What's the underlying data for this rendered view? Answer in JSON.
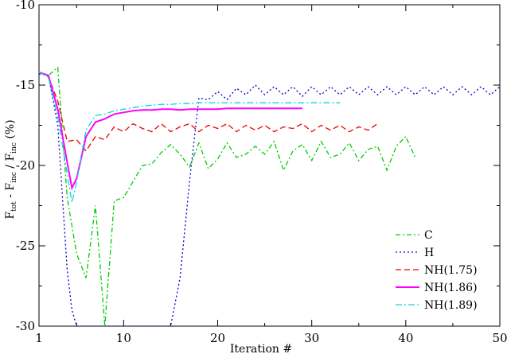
{
  "chart_data": {
    "type": "line",
    "title": "",
    "xlabel": "Iteration #",
    "ylabel": {
      "main": "F",
      "sub1": "tot",
      "mid": " - F",
      "sub2": "inc",
      "mid2": " / F",
      "sub3": "inc",
      "tail": " (%)"
    },
    "xlim": [
      1,
      50
    ],
    "ylim": [
      -30,
      -10
    ],
    "xticks": [
      1,
      10,
      20,
      30,
      40,
      50
    ],
    "yticks": [
      -30,
      -25,
      -20,
      -15,
      -10
    ],
    "grid": false,
    "legend_position": "bottom-right",
    "series": [
      {
        "name": "C",
        "color": "#00cc00",
        "dash": "6,3,2,3",
        "x": [
          1,
          2,
          3,
          4,
          5,
          6,
          7,
          8,
          9,
          10,
          11,
          12,
          13,
          14,
          15,
          16,
          17,
          18,
          19,
          20,
          21,
          22,
          23,
          24,
          25,
          26,
          27,
          28,
          29,
          30,
          31,
          32,
          33,
          34,
          35,
          36,
          37,
          38,
          39,
          40,
          41
        ],
        "y": [
          -14.2,
          -14.4,
          -13.9,
          -22.0,
          -25.5,
          -27.0,
          -22.5,
          -30.0,
          -22.2,
          -22.0,
          -21.0,
          -20.0,
          -19.9,
          -19.2,
          -18.7,
          -19.3,
          -20.1,
          -18.6,
          -20.2,
          -19.6,
          -18.6,
          -19.5,
          -19.3,
          -18.8,
          -19.3,
          -18.5,
          -20.3,
          -19.1,
          -18.7,
          -19.7,
          -18.5,
          -19.5,
          -19.3,
          -18.6,
          -19.7,
          -19.0,
          -18.8,
          -20.3,
          -18.8,
          -18.2,
          -19.5
        ]
      },
      {
        "name": "H",
        "color": "#0000cc",
        "dash": "2,3",
        "x": [
          1,
          2,
          3,
          3.5,
          4,
          4.5,
          5,
          6,
          8,
          10,
          12,
          14,
          15,
          16,
          17,
          18,
          19,
          20,
          21,
          22,
          23,
          24,
          25,
          26,
          27,
          28,
          29,
          30,
          31,
          32,
          33,
          34,
          35,
          36,
          37,
          38,
          39,
          40,
          41,
          42,
          43,
          44,
          45,
          46,
          47,
          48,
          49,
          50
        ],
        "y": [
          -14.3,
          -14.4,
          -17.5,
          -22.0,
          -26.5,
          -29.0,
          -30.0,
          -30.0,
          -30.0,
          -30.0,
          -30.0,
          -30.0,
          -30.0,
          -27.0,
          -21.0,
          -15.8,
          -15.9,
          -15.4,
          -15.9,
          -15.2,
          -15.6,
          -15.0,
          -15.6,
          -15.1,
          -15.6,
          -15.1,
          -15.7,
          -15.1,
          -15.6,
          -15.1,
          -15.6,
          -15.1,
          -15.6,
          -15.1,
          -15.6,
          -15.1,
          -15.6,
          -15.1,
          -15.6,
          -15.1,
          -15.6,
          -15.1,
          -15.6,
          -15.1,
          -15.6,
          -15.1,
          -15.6,
          -15.1
        ]
      },
      {
        "name": "NH(1.75)",
        "color": "#ee0000",
        "dash": "7,4",
        "x": [
          1,
          2,
          3,
          4,
          5,
          6,
          7,
          8,
          9,
          10,
          11,
          12,
          13,
          14,
          15,
          16,
          17,
          18,
          19,
          20,
          21,
          22,
          23,
          24,
          25,
          26,
          27,
          28,
          29,
          30,
          31,
          32,
          33,
          34,
          35,
          36,
          37
        ],
        "y": [
          -14.2,
          -14.5,
          -16.0,
          -18.5,
          -18.4,
          -19.1,
          -18.2,
          -18.4,
          -17.6,
          -17.9,
          -17.4,
          -17.7,
          -17.9,
          -17.4,
          -17.9,
          -17.6,
          -17.4,
          -17.9,
          -17.5,
          -17.7,
          -17.4,
          -17.9,
          -17.5,
          -17.8,
          -17.5,
          -17.9,
          -17.6,
          -17.7,
          -17.4,
          -17.9,
          -17.5,
          -17.8,
          -17.5,
          -17.9,
          -17.6,
          -17.8,
          -17.4
        ]
      },
      {
        "name": "NH(1.86)",
        "color": "#ff00ff",
        "dash": "",
        "x": [
          1,
          2,
          3,
          4,
          4.5,
          5,
          6,
          7,
          8,
          9,
          10,
          11,
          12,
          13,
          14,
          15,
          16,
          17,
          18,
          19,
          20,
          21,
          22,
          23,
          24,
          25,
          26,
          27,
          28,
          29
        ],
        "y": [
          -14.2,
          -14.4,
          -16.5,
          -19.8,
          -21.4,
          -20.8,
          -18.2,
          -17.3,
          -17.1,
          -16.8,
          -16.7,
          -16.6,
          -16.55,
          -16.55,
          -16.5,
          -16.5,
          -16.55,
          -16.5,
          -16.5,
          -16.5,
          -16.5,
          -16.45,
          -16.45,
          -16.45,
          -16.45,
          -16.45,
          -16.45,
          -16.45,
          -16.45,
          -16.45
        ]
      },
      {
        "name": "NH(1.89)",
        "color": "#00dddd",
        "dash": "8,3,2,3",
        "x": [
          1,
          2,
          3,
          4,
          4.5,
          5,
          6,
          7,
          8,
          9,
          10,
          11,
          12,
          13,
          14,
          15,
          16,
          17,
          18,
          19,
          20,
          21,
          22,
          23,
          24,
          25,
          26,
          27,
          28,
          29,
          30,
          31,
          32,
          33
        ],
        "y": [
          -14.2,
          -14.5,
          -17.0,
          -20.5,
          -22.3,
          -21.0,
          -17.8,
          -16.9,
          -16.8,
          -16.6,
          -16.5,
          -16.4,
          -16.3,
          -16.25,
          -16.2,
          -16.2,
          -16.15,
          -16.15,
          -16.1,
          -16.1,
          -16.1,
          -16.1,
          -16.1,
          -16.1,
          -16.1,
          -16.1,
          -16.1,
          -16.1,
          -16.1,
          -16.1,
          -16.1,
          -16.1,
          -16.1,
          -16.1
        ]
      }
    ]
  }
}
